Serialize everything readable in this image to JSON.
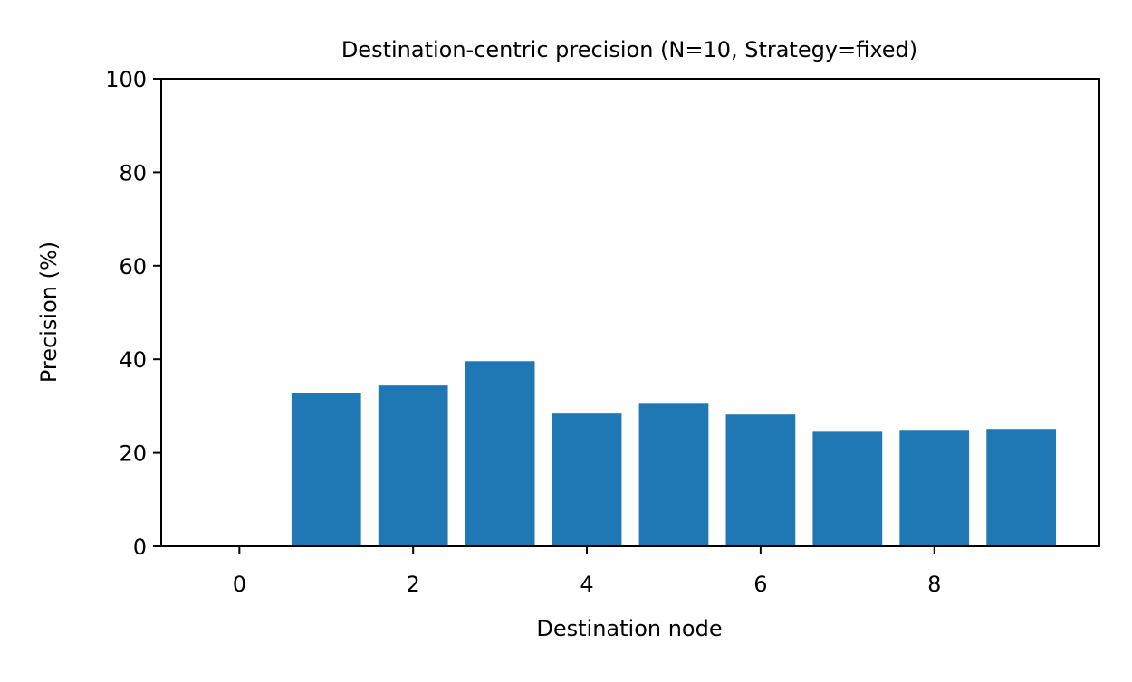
{
  "chart_data": {
    "type": "bar",
    "title": "Destination-centric precision (N=10, Strategy=fixed)",
    "xlabel": "Destination node",
    "ylabel": "Precision (%)",
    "x": [
      0,
      1,
      2,
      3,
      4,
      5,
      6,
      7,
      8,
      9
    ],
    "values": [
      0,
      32.7,
      34.4,
      39.6,
      28.4,
      30.5,
      28.2,
      24.5,
      24.9,
      25.1
    ],
    "xlim": [
      -0.9,
      9.9
    ],
    "ylim": [
      0,
      100
    ],
    "xticks": [
      0,
      2,
      4,
      6,
      8
    ],
    "yticks": [
      0,
      20,
      40,
      60,
      80,
      100
    ],
    "bar_width": 0.8,
    "bar_color": "#1f77b4",
    "grid": false,
    "legend": false
  }
}
